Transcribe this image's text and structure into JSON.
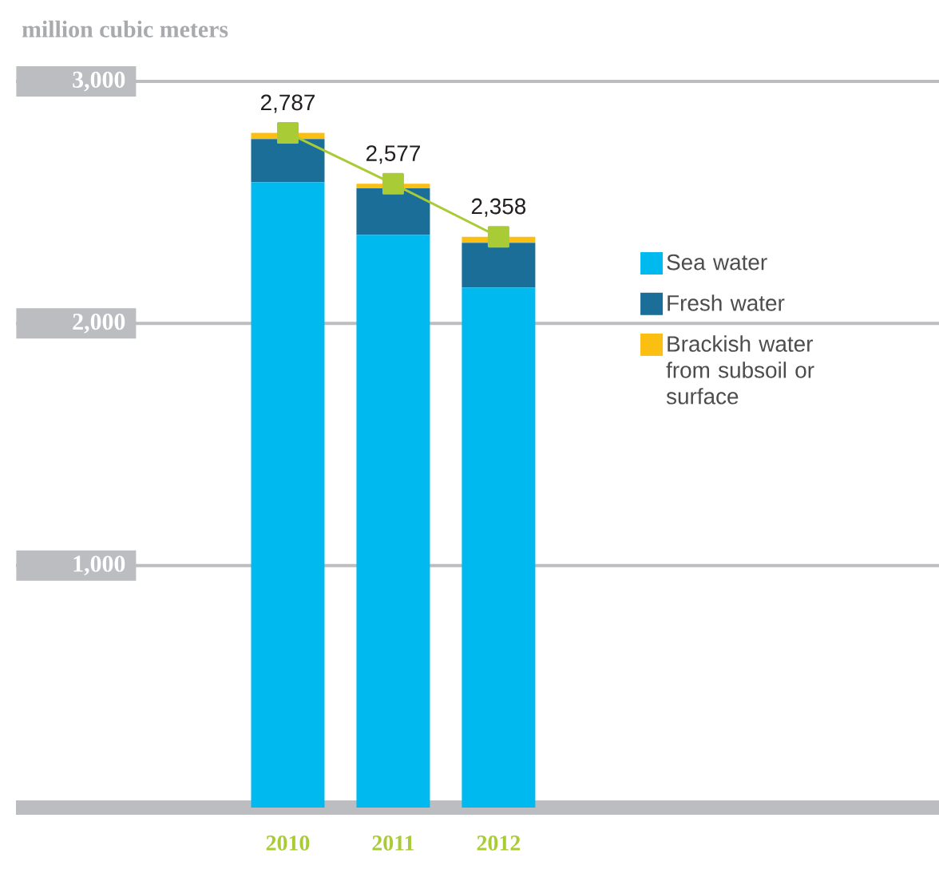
{
  "chart_data": {
    "type": "bar",
    "stacked": true,
    "ylabel": "million cubic meters",
    "categories": [
      "2010",
      "2011",
      "2012"
    ],
    "series": [
      {
        "name": "Sea water",
        "color": "#00b9ef",
        "values": [
          2584,
          2366,
          2149
        ]
      },
      {
        "name": "Fresh water",
        "color": "#1a6e98",
        "values": [
          178,
          192,
          184
        ]
      },
      {
        "name": "Brackish water from subsoil or surface",
        "color": "#fbbf12",
        "values": [
          25,
          19,
          25
        ]
      },
      {
        "type": "line",
        "color": "#a9cb35",
        "marker": "square",
        "values": [
          2787,
          2577,
          2358
        ]
      }
    ],
    "totals": [
      "2,787",
      "2,577",
      "2,358"
    ],
    "ylim": [
      0,
      3000
    ],
    "yticks": [
      {
        "value": 1000,
        "label": "1,000"
      },
      {
        "value": 2000,
        "label": "2,000"
      },
      {
        "value": 3000,
        "label": "3,000"
      }
    ],
    "grid": "y",
    "legend": "right"
  }
}
